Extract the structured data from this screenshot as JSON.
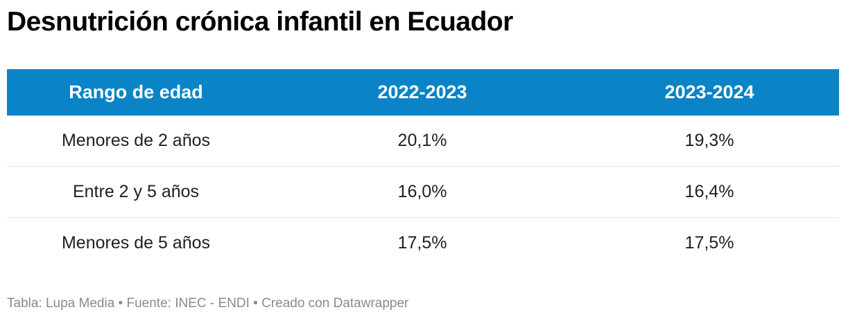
{
  "title": "Desnutrición crónica infantil en Ecuador",
  "chart_data": {
    "type": "table",
    "title": "Desnutrición crónica infantil en Ecuador",
    "columns": [
      "Rango de edad",
      "2022-2023",
      "2023-2024"
    ],
    "rows": [
      [
        "Menores de 2 años",
        "20,1%",
        "19,3%"
      ],
      [
        "Entre 2 y 5 años",
        "16,0%",
        "16,4%"
      ],
      [
        "Menores de 5 años",
        "17,5%",
        "17,5%"
      ]
    ]
  },
  "footer": "Tabla: Lupa Media • Fuente: INEC - ENDI • Creado con Datawrapper",
  "colors": {
    "header_bg": "#0a84c6",
    "header_text": "#ffffff"
  }
}
